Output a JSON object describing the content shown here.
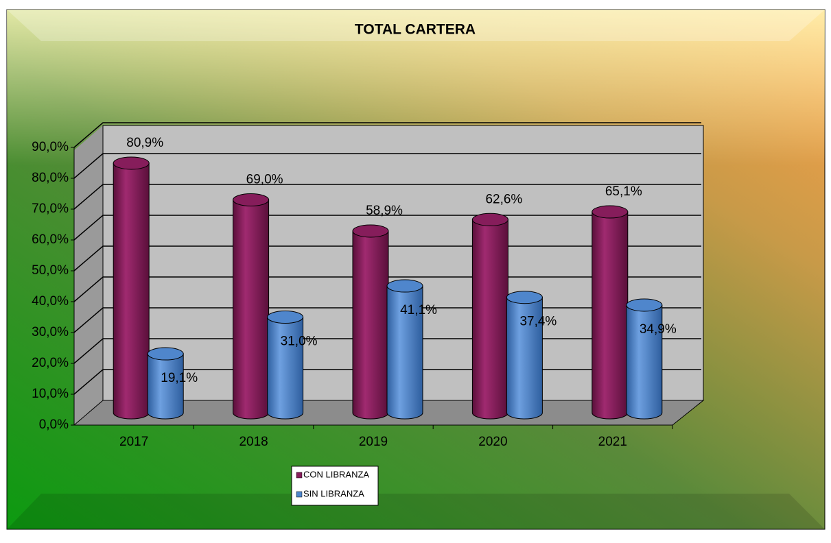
{
  "chart_data": {
    "type": "bar3d",
    "title": "TOTAL CARTERA",
    "categories": [
      "2017",
      "2018",
      "2019",
      "2020",
      "2021"
    ],
    "series": [
      {
        "name": "CON LIBRANZA",
        "color": "#861d5b",
        "values": [
          80.9,
          69.0,
          58.9,
          62.6,
          65.1
        ],
        "value_labels": [
          "80,9%",
          "69,0%",
          "58,9%",
          "62,6%",
          "65,1%"
        ]
      },
      {
        "name": "SIN LIBRANZA",
        "color": "#4f86cc",
        "values": [
          19.1,
          31.0,
          41.1,
          37.4,
          34.9
        ],
        "value_labels": [
          "19,1%",
          "31,0%",
          "41,1%",
          "37,4%",
          "34,9%"
        ]
      }
    ],
    "ylim": [
      0,
      90
    ],
    "yticks": [
      {
        "value": 0,
        "label": "0,0%"
      },
      {
        "value": 10,
        "label": "10,0%"
      },
      {
        "value": 20,
        "label": "20,0%"
      },
      {
        "value": 30,
        "label": "30,0%"
      },
      {
        "value": 40,
        "label": "40,0%"
      },
      {
        "value": 50,
        "label": "50,0%"
      },
      {
        "value": 60,
        "label": "60,0%"
      },
      {
        "value": 70,
        "label": "70,0%"
      },
      {
        "value": 80,
        "label": "80,0%"
      },
      {
        "value": 90,
        "label": "90,0%"
      }
    ],
    "grid": true,
    "legend": "bottom"
  }
}
